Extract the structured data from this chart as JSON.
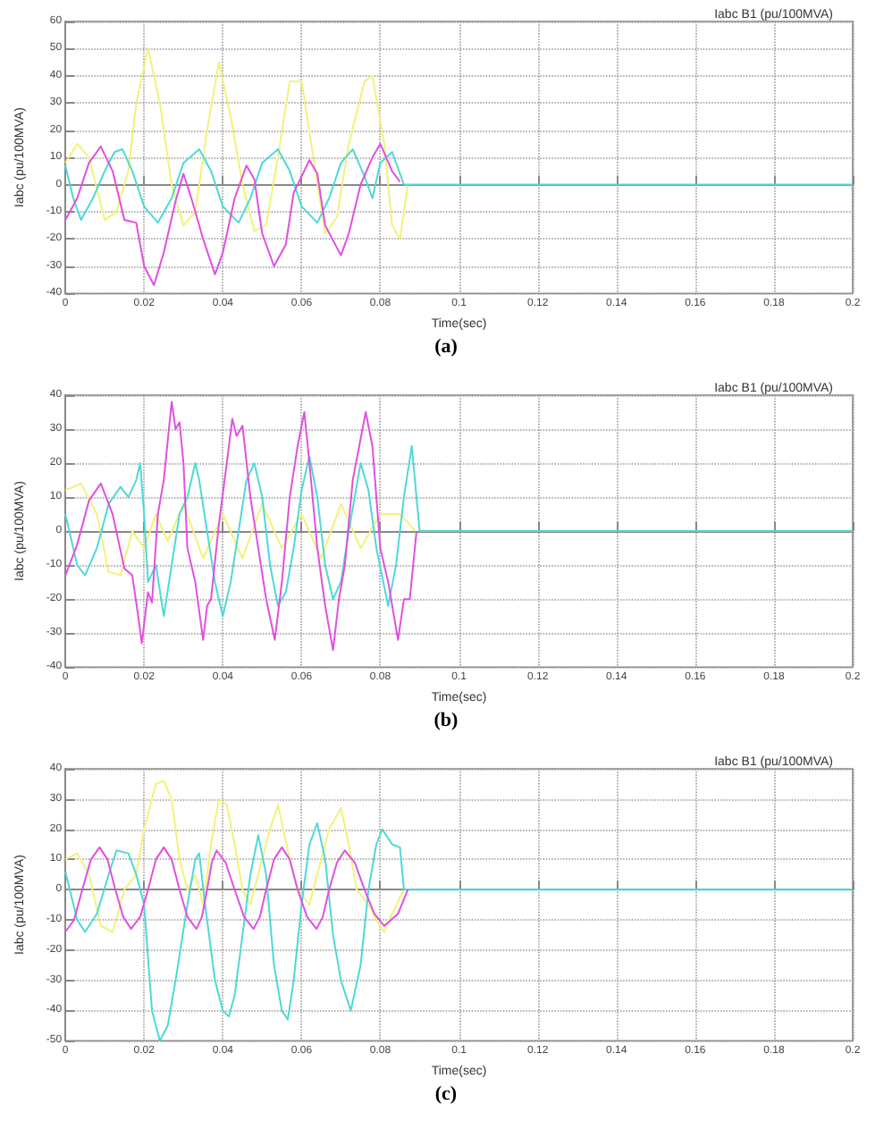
{
  "chart_data": [
    {
      "type": "line",
      "title": "Iabc B1 (pu/100MVA)",
      "xlabel": "Time(sec)",
      "ylabel": "Iabc (pu/100MVA)",
      "annotations": [
        "(a)"
      ],
      "grid": true,
      "line_style": "solid",
      "marker": "none",
      "xlim": [
        0,
        0.2
      ],
      "xticks": [
        0,
        0.02,
        0.04,
        0.06,
        0.08,
        0.1,
        0.12,
        0.14,
        0.16,
        0.18,
        0.2
      ],
      "ylim": [
        -40,
        60
      ],
      "yticks": [
        -40,
        -30,
        -20,
        -10,
        0,
        10,
        20,
        30,
        40,
        50,
        60
      ],
      "series": [
        {
          "color": "#f2f27a",
          "x": [
            0,
            0.003,
            0.006,
            0.01,
            0.013,
            0.016,
            0.018,
            0.021,
            0.024,
            0.027,
            0.03,
            0.033,
            0.036,
            0.039,
            0.042,
            0.045,
            0.048,
            0.051,
            0.054,
            0.057,
            0.06,
            0.063,
            0.066,
            0.069,
            0.072,
            0.076,
            0.078,
            0.081,
            0.083,
            0.085,
            0.087
          ],
          "values": [
            8,
            15,
            10,
            -13,
            -10,
            5,
            30,
            50,
            30,
            0,
            -15,
            -10,
            20,
            45,
            25,
            0,
            -17,
            -15,
            10,
            38,
            38,
            10,
            -18,
            -12,
            15,
            38,
            40,
            15,
            -15,
            -20,
            0
          ]
        },
        {
          "color": "#4fd8d8",
          "x": [
            0,
            0.002,
            0.004,
            0.007,
            0.01,
            0.0125,
            0.0145,
            0.017,
            0.02,
            0.0235,
            0.027,
            0.03,
            0.034,
            0.037,
            0.04,
            0.044,
            0.047,
            0.05,
            0.054,
            0.057,
            0.06,
            0.064,
            0.067,
            0.07,
            0.073,
            0.076,
            0.078,
            0.08,
            0.083,
            0.086,
            0.2
          ],
          "values": [
            7,
            -5,
            -13,
            -5,
            5,
            12,
            13,
            5,
            -8,
            -14,
            -5,
            8,
            13,
            5,
            -8,
            -14,
            -5,
            8,
            13,
            5,
            -8,
            -14,
            -5,
            8,
            13,
            3,
            -5,
            8,
            12,
            0,
            0
          ]
        },
        {
          "color": "#e050e0",
          "x": [
            0,
            0.003,
            0.006,
            0.009,
            0.012,
            0.015,
            0.018,
            0.02,
            0.0225,
            0.025,
            0.028,
            0.03,
            0.032,
            0.035,
            0.038,
            0.04,
            0.043,
            0.046,
            0.048,
            0.05,
            0.053,
            0.056,
            0.058,
            0.062,
            0.064,
            0.066,
            0.07,
            0.072,
            0.075,
            0.078,
            0.08,
            0.083,
            0.085
          ],
          "values": [
            -13,
            -5,
            8,
            14,
            5,
            -13,
            -14,
            -30,
            -37,
            -25,
            -6,
            4,
            -5,
            -20,
            -33,
            -25,
            -5,
            7,
            2,
            -18,
            -30,
            -22,
            -3,
            9,
            4,
            -15,
            -26,
            -18,
            0,
            10,
            15,
            5,
            1
          ]
        }
      ]
    },
    {
      "type": "line",
      "title": "Iabc B1 (pu/100MVA)",
      "xlabel": "Time(sec)",
      "ylabel": "Iabc (pu/100MVA)",
      "annotations": [
        "(b)"
      ],
      "grid": true,
      "line_style": "solid",
      "marker": "none",
      "xlim": [
        0,
        0.2
      ],
      "xticks": [
        0,
        0.02,
        0.04,
        0.06,
        0.08,
        0.1,
        0.12,
        0.14,
        0.16,
        0.18,
        0.2
      ],
      "ylim": [
        -40,
        40
      ],
      "yticks": [
        -40,
        -30,
        -20,
        -10,
        0,
        10,
        20,
        30,
        40
      ],
      "series": [
        {
          "color": "#f2f27a",
          "x": [
            0,
            0.004,
            0.008,
            0.011,
            0.014,
            0.017,
            0.02,
            0.023,
            0.026,
            0.03,
            0.035,
            0.04,
            0.045,
            0.05,
            0.055,
            0.06,
            0.065,
            0.07,
            0.075,
            0.08,
            0.085,
            0.089
          ],
          "values": [
            12,
            14,
            5,
            -12,
            -13,
            0,
            -5,
            5,
            -3,
            8,
            -8,
            5,
            -8,
            8,
            -5,
            5,
            -8,
            8,
            -5,
            5,
            5,
            0
          ]
        },
        {
          "color": "#4fd8d8",
          "x": [
            0,
            0.003,
            0.005,
            0.008,
            0.011,
            0.014,
            0.016,
            0.018,
            0.019,
            0.02,
            0.021,
            0.023,
            0.025,
            0.027,
            0.029,
            0.031,
            0.033,
            0.034,
            0.036,
            0.038,
            0.04,
            0.042,
            0.044,
            0.046,
            0.048,
            0.05,
            0.052,
            0.054,
            0.056,
            0.058,
            0.06,
            0.062,
            0.064,
            0.066,
            0.068,
            0.07,
            0.072,
            0.075,
            0.077,
            0.079,
            0.082,
            0.084,
            0.086,
            0.088,
            0.09,
            0.2
          ],
          "values": [
            5,
            -10,
            -13,
            -5,
            8,
            13,
            10,
            15,
            20,
            5,
            -15,
            -10,
            -25,
            -10,
            5,
            10,
            20,
            15,
            0,
            -15,
            -25,
            -15,
            0,
            15,
            20,
            10,
            -10,
            -22,
            -18,
            -5,
            12,
            22,
            10,
            -10,
            -20,
            -15,
            0,
            20,
            12,
            -5,
            -22,
            -10,
            10,
            25,
            0,
            0
          ]
        },
        {
          "color": "#e050e0",
          "x": [
            0,
            0.003,
            0.006,
            0.009,
            0.012,
            0.015,
            0.017,
            0.0185,
            0.0194,
            0.021,
            0.022,
            0.0235,
            0.025,
            0.027,
            0.028,
            0.029,
            0.03,
            0.031,
            0.033,
            0.035,
            0.036,
            0.037,
            0.039,
            0.041,
            0.0424,
            0.0435,
            0.045,
            0.047,
            0.049,
            0.051,
            0.0532,
            0.055,
            0.057,
            0.059,
            0.0607,
            0.062,
            0.064,
            0.066,
            0.068,
            0.0695,
            0.071,
            0.073,
            0.0763,
            0.078,
            0.08,
            0.082,
            0.0845,
            0.086,
            0.0875,
            0.0892
          ],
          "values": [
            -13,
            -4,
            9,
            14,
            5,
            -11,
            -13,
            -25,
            -33,
            -18,
            -21,
            5,
            15,
            38,
            30,
            32,
            20,
            -5,
            -15,
            -32,
            -22,
            -20,
            2,
            20,
            33,
            28,
            31,
            10,
            -5,
            -20,
            -32,
            -15,
            10,
            25,
            35,
            20,
            -5,
            -22,
            -35,
            -20,
            -10,
            15,
            35,
            25,
            -5,
            -15,
            -32,
            -20,
            -20,
            0
          ]
        }
      ]
    },
    {
      "type": "line",
      "title": "Iabc B1 (pu/100MVA)",
      "xlabel": "Time(sec)",
      "ylabel": "Iabc (pu/100MVA)",
      "annotations": [
        "(c)"
      ],
      "grid": true,
      "line_style": "solid",
      "marker": "none",
      "xlim": [
        0,
        0.2
      ],
      "xticks": [
        0,
        0.02,
        0.04,
        0.06,
        0.08,
        0.1,
        0.12,
        0.14,
        0.16,
        0.18,
        0.2
      ],
      "ylim": [
        -50,
        40
      ],
      "yticks": [
        -50,
        -40,
        -30,
        -20,
        -10,
        0,
        10,
        20,
        30,
        40
      ],
      "series": [
        {
          "color": "#f2f27a",
          "x": [
            0,
            0.003,
            0.006,
            0.009,
            0.012,
            0.015,
            0.018,
            0.02,
            0.023,
            0.025,
            0.027,
            0.029,
            0.031,
            0.033,
            0.035,
            0.037,
            0.039,
            0.041,
            0.043,
            0.045,
            0.047,
            0.049,
            0.052,
            0.054,
            0.057,
            0.059,
            0.062,
            0.064,
            0.067,
            0.07,
            0.072,
            0.074,
            0.077,
            0.079,
            0.081,
            0.083,
            0.086
          ],
          "values": [
            10,
            12,
            5,
            -12,
            -14,
            0,
            5,
            20,
            35,
            36,
            30,
            10,
            0,
            5,
            -5,
            15,
            30,
            28,
            15,
            0,
            -5,
            5,
            20,
            28,
            10,
            0,
            -5,
            5,
            20,
            27,
            15,
            0,
            -5,
            -10,
            -14,
            -8,
            0
          ]
        },
        {
          "color": "#4fd8d8",
          "x": [
            0,
            0.003,
            0.005,
            0.008,
            0.011,
            0.013,
            0.016,
            0.018,
            0.02,
            0.022,
            0.024,
            0.026,
            0.028,
            0.031,
            0.033,
            0.034,
            0.0355,
            0.038,
            0.04,
            0.0415,
            0.043,
            0.045,
            0.047,
            0.049,
            0.051,
            0.053,
            0.055,
            0.0565,
            0.058,
            0.06,
            0.062,
            0.064,
            0.066,
            0.068,
            0.07,
            0.0725,
            0.075,
            0.077,
            0.079,
            0.0805,
            0.083,
            0.085,
            0.086,
            0.2
          ],
          "values": [
            6,
            -10,
            -14,
            -8,
            5,
            13,
            12,
            5,
            -5,
            -40,
            -50,
            -45,
            -30,
            -5,
            10,
            12,
            -5,
            -30,
            -40,
            -42,
            -35,
            -15,
            5,
            18,
            5,
            -25,
            -40,
            -43,
            -30,
            -5,
            15,
            22,
            10,
            -15,
            -30,
            -40,
            -25,
            0,
            15,
            20,
            15,
            14,
            0,
            0
          ]
        },
        {
          "color": "#e050e0",
          "x": [
            0,
            0.0022,
            0.0043,
            0.0065,
            0.0087,
            0.0107,
            0.0127,
            0.0147,
            0.0167,
            0.019,
            0.021,
            0.023,
            0.025,
            0.027,
            0.029,
            0.031,
            0.0333,
            0.0347,
            0.036,
            0.0372,
            0.0384,
            0.0407,
            0.043,
            0.0454,
            0.0478,
            0.0494,
            0.051,
            0.053,
            0.055,
            0.057,
            0.059,
            0.0614,
            0.0638,
            0.0654,
            0.067,
            0.069,
            0.071,
            0.0735,
            0.076,
            0.0785,
            0.081,
            0.0845,
            0.087
          ],
          "values": [
            -14,
            -10,
            0,
            10,
            14,
            10,
            0,
            -9,
            -13,
            -9,
            0,
            10,
            14,
            10,
            0,
            -9,
            -13,
            -9,
            0,
            9,
            13,
            9,
            0,
            -9,
            -13,
            -9,
            0,
            10,
            14,
            10,
            0,
            -9,
            -13,
            -9,
            0,
            9,
            13,
            9,
            0,
            -8,
            -12,
            -8,
            0
          ]
        }
      ]
    }
  ]
}
